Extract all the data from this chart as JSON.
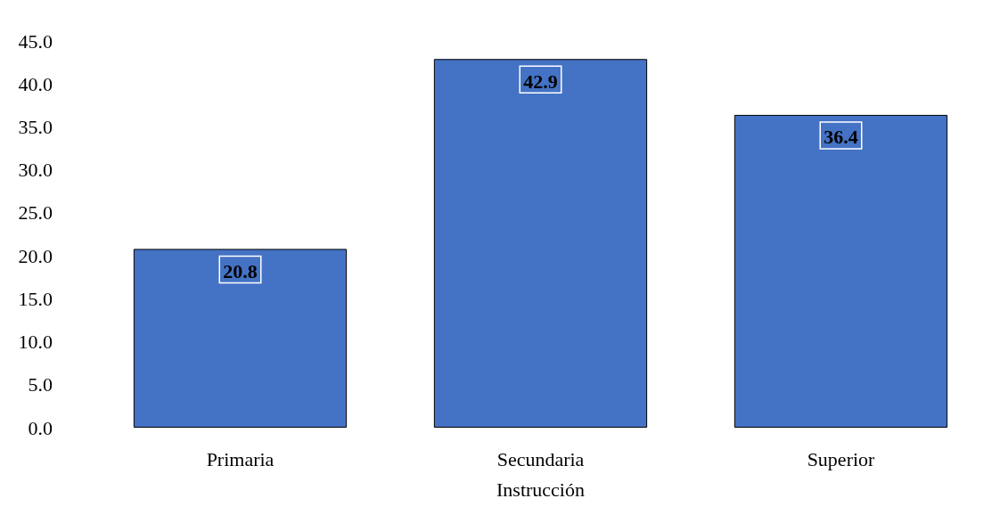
{
  "chart_data": {
    "type": "bar",
    "xlabel": "Instrucción",
    "categories": [
      "Primaria",
      "Secundaria",
      "Superior"
    ],
    "values": [
      20.8,
      42.9,
      36.4
    ],
    "color": "#4472c4",
    "ylim": [
      0,
      45
    ],
    "yticks": [
      {
        "value": 0,
        "label": "0.0"
      },
      {
        "value": 5,
        "label": "5.0"
      },
      {
        "value": 10,
        "label": "10.0"
      },
      {
        "value": 15,
        "label": "15.0"
      },
      {
        "value": 20,
        "label": "20.0"
      },
      {
        "value": 25,
        "label": "25.0"
      },
      {
        "value": 30,
        "label": "30.0"
      },
      {
        "value": 35,
        "label": "35.0"
      },
      {
        "value": 40,
        "label": "40.0"
      },
      {
        "value": 45,
        "label": "45.0"
      }
    ],
    "data_labels": true
  }
}
